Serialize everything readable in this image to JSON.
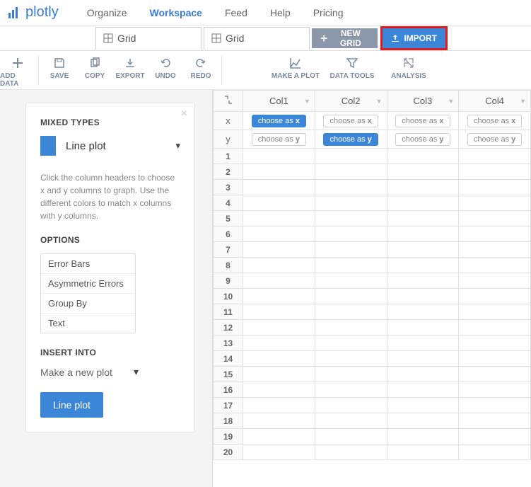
{
  "brand": {
    "name": "plotly",
    "color": "#3a7bd5"
  },
  "nav": {
    "items": [
      {
        "label": "Organize",
        "active": false
      },
      {
        "label": "Workspace",
        "active": true
      },
      {
        "label": "Feed",
        "active": false
      },
      {
        "label": "Help",
        "active": false
      },
      {
        "label": "Pricing",
        "active": false
      }
    ]
  },
  "tabs": [
    {
      "label": "Grid",
      "active": true
    },
    {
      "label": "Grid",
      "active": false
    }
  ],
  "topbuttons": {
    "newgrid": "NEW GRID",
    "import": "IMPORT",
    "import_highlight_color": "#e11b1b"
  },
  "toolbar": {
    "groups": [
      [
        {
          "label": "ADD DATA",
          "icon": "plus",
          "wide": false
        }
      ],
      [
        {
          "label": "SAVE",
          "icon": "save"
        },
        {
          "label": "COPY",
          "icon": "copy"
        },
        {
          "label": "EXPORT",
          "icon": "export"
        },
        {
          "label": "UNDO",
          "icon": "undo"
        },
        {
          "label": "REDO",
          "icon": "redo"
        }
      ],
      [
        {
          "label": "MAKE A PLOT",
          "icon": "plot",
          "wide": true
        },
        {
          "label": "DATA TOOLS",
          "icon": "filter",
          "wide": true
        },
        {
          "label": "ANALYSIS",
          "icon": "analysis",
          "wide": true
        }
      ]
    ]
  },
  "panel": {
    "section1_title": "MIXED TYPES",
    "plot_type": "Line plot",
    "plot_swatch_color": "#3b86d6",
    "help": "Click the column headers to choose x and y columns to graph. Use the different colors to match x columns with y columns.",
    "options_title": "OPTIONS",
    "options": [
      "Error Bars",
      "Asymmetric Errors",
      "Group By",
      "Text"
    ],
    "insert_title": "INSERT INTO",
    "insert_value": "Make a new plot",
    "action_label": "Line plot"
  },
  "grid": {
    "columns": [
      "Col1",
      "Col2",
      "Col3",
      "Col4"
    ],
    "axis_rows": [
      {
        "axis": "x",
        "pill_prefix": "choose as ",
        "pill_suffix": "x",
        "active": [
          true,
          false,
          false,
          false
        ]
      },
      {
        "axis": "y",
        "pill_prefix": "choose as ",
        "pill_suffix": "y",
        "active": [
          false,
          true,
          false,
          false
        ]
      }
    ],
    "row_count": 20,
    "colors": {
      "active_pill_bg": "#3b86d6",
      "header_bg": "#fafafa",
      "border": "#e0e0e0"
    }
  }
}
